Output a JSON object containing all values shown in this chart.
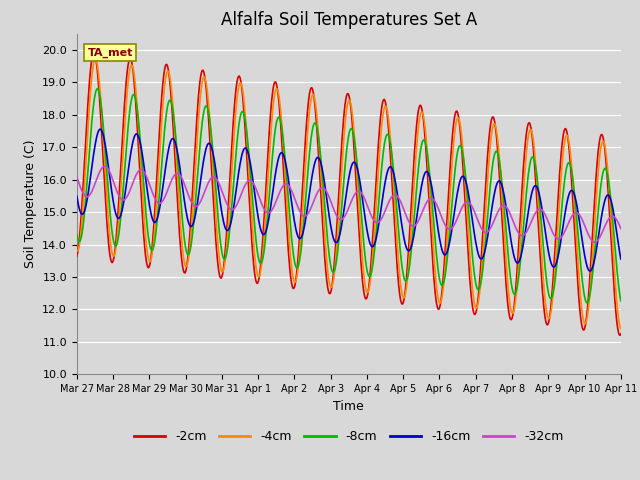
{
  "title": "Alfalfa Soil Temperatures Set A",
  "xlabel": "Time",
  "ylabel": "Soil Temperature (C)",
  "annotation": "TA_met",
  "ylim": [
    10.0,
    20.5
  ],
  "yticks": [
    10.0,
    11.0,
    12.0,
    13.0,
    14.0,
    15.0,
    16.0,
    17.0,
    18.0,
    19.0,
    20.0
  ],
  "date_labels": [
    "Mar 27",
    "Mar 28",
    "Mar 29",
    "Mar 30",
    "Mar 31",
    "Apr 1",
    "Apr 2",
    "Apr 3",
    "Apr 4",
    "Apr 5",
    "Apr 6",
    "Apr 7",
    "Apr 8",
    "Apr 9",
    "Apr 10",
    "Apr 11"
  ],
  "background_color": "#d8d8d8",
  "plot_bg_color": "#d8d8d8",
  "grid_color": "#ffffff",
  "lines": [
    {
      "label": "-2cm",
      "color": "#dd0000",
      "lw": 1.2
    },
    {
      "label": "-4cm",
      "color": "#ff8800",
      "lw": 1.2
    },
    {
      "label": "-8cm",
      "color": "#00bb00",
      "lw": 1.2
    },
    {
      "label": "-16cm",
      "color": "#0000cc",
      "lw": 1.2
    },
    {
      "label": "-32cm",
      "color": "#cc44cc",
      "lw": 1.2
    }
  ],
  "title_fontsize": 12,
  "label_fontsize": 9,
  "tick_fontsize": 8
}
